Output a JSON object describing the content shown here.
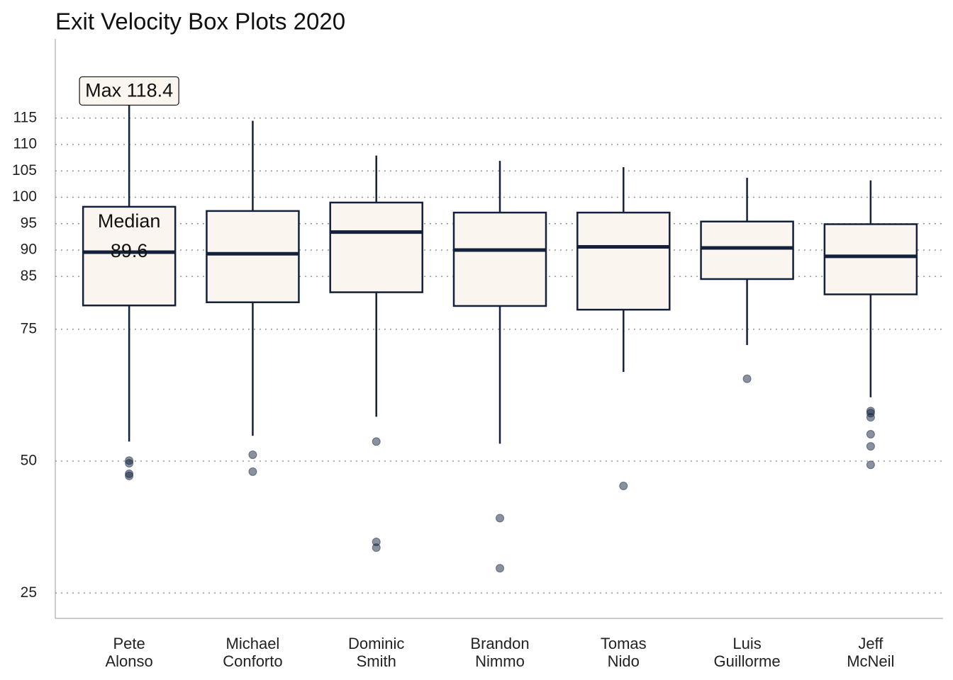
{
  "chart_data": {
    "type": "box",
    "title": "Exit Velocity Box Plots 2020",
    "categories": [
      "Pete\nAlonso",
      "Michael\nConforto",
      "Dominic\nSmith",
      "Brandon\nNimmo",
      "Tomas\nNido",
      "Luis\nGuillorme",
      "Jeff\nMcNeil"
    ],
    "boxes": [
      {
        "min": 53.7,
        "q1": 79.5,
        "median": 89.6,
        "q3": 98.2,
        "max": 118.4,
        "outliers": [
          50.1,
          49.6,
          47.6,
          47.2
        ]
      },
      {
        "min": 54.8,
        "q1": 80.1,
        "median": 89.3,
        "q3": 97.4,
        "max": 114.5,
        "outliers": [
          51.2,
          48.0
        ]
      },
      {
        "min": 58.4,
        "q1": 82.0,
        "median": 93.4,
        "q3": 99.0,
        "max": 107.9,
        "outliers": [
          53.7,
          34.7,
          33.6
        ]
      },
      {
        "min": 53.3,
        "q1": 79.4,
        "median": 90.0,
        "q3": 97.1,
        "max": 106.9,
        "outliers": [
          39.2,
          29.7
        ]
      },
      {
        "min": 66.9,
        "q1": 78.7,
        "median": 90.6,
        "q3": 97.1,
        "max": 105.7,
        "outliers": [
          45.3
        ]
      },
      {
        "min": 72.0,
        "q1": 84.5,
        "median": 90.4,
        "q3": 95.4,
        "max": 103.7,
        "outliers": [
          65.6
        ]
      },
      {
        "min": 62.1,
        "q1": 81.6,
        "median": 88.8,
        "q3": 94.9,
        "max": 103.2,
        "outliers": [
          59.5,
          59.1,
          58.3,
          55.1,
          52.8,
          49.3
        ]
      }
    ],
    "box_fill": "#faf5ee",
    "color": "#14213d",
    "annotations": [
      {
        "text": "Max 118.4",
        "category": 0,
        "value": 118.4,
        "boxed": true
      },
      {
        "lines": [
          "Median",
          "89.6"
        ],
        "category": 0,
        "value": 89.6
      }
    ],
    "ylim": [
      20.2,
      130
    ],
    "yticks": [
      25,
      50,
      75,
      85,
      90,
      95,
      100,
      105,
      110,
      115
    ],
    "grid": true
  }
}
